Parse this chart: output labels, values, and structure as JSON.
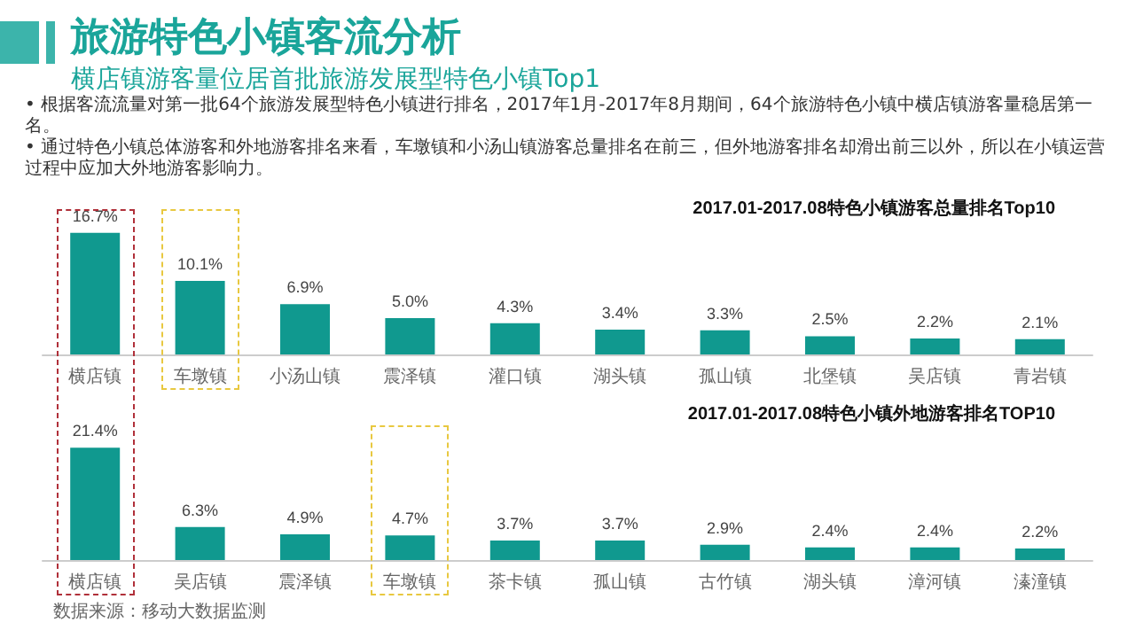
{
  "chart_data": [
    {
      "type": "other",
      "title": "旅游特色小镇客流分析",
      "subtitle": "横店镇游客量位居首批旅游发展型特色小镇Top1",
      "annotations": [
        "• 根据客流流量对第一批64个旅游发展型特色小镇进行排名，2017年1月-2017年8月期间，64个旅游特色小镇中横店镇游客量稳居第一名。",
        "• 通过特色小镇总体游客和外地游客排名来看，车墩镇和小汤山镇游客总量排名在前三，但外地游客排名却滑出前三以外，所以在小镇运营过程中应加大外地游客影响力。"
      ]
    },
    {
      "type": "bar",
      "title": "2017.01-2017.08特色小镇游客总量排名Top10",
      "color": "#10998f",
      "categories": [
        "横店镇",
        "车墩镇",
        "小汤山镇",
        "震泽镇",
        "灌口镇",
        "湖头镇",
        "孤山镇",
        "北堡镇",
        "吴店镇",
        "青岩镇"
      ],
      "values": [
        16.7,
        10.1,
        6.9,
        5.0,
        4.3,
        3.4,
        3.3,
        2.5,
        2.2,
        2.1
      ],
      "value_labels": [
        "16.7%",
        "10.1%",
        "6.9%",
        "5.0%",
        "4.3%",
        "3.4%",
        "3.3%",
        "2.5%",
        "2.2%",
        "2.1%"
      ],
      "grid": false
    },
    {
      "type": "bar",
      "title": "2017.01-2017.08特色小镇外地游客排名TOP10",
      "color": "#10998f",
      "categories": [
        "横店镇",
        "吴店镇",
        "震泽镇",
        "车墩镇",
        "茶卡镇",
        "孤山镇",
        "古竹镇",
        "湖头镇",
        "漳河镇",
        "溱潼镇"
      ],
      "values": [
        21.4,
        6.3,
        4.9,
        4.7,
        3.7,
        3.7,
        2.9,
        2.4,
        2.4,
        2.2
      ],
      "value_labels": [
        "21.4%",
        "6.3%",
        "4.9%",
        "4.7%",
        "3.7%",
        "3.7%",
        "2.9%",
        "2.4%",
        "2.4%",
        "2.2%"
      ],
      "grid": false,
      "annotations": [
        "数据来源：移动大数据监测"
      ]
    }
  ]
}
